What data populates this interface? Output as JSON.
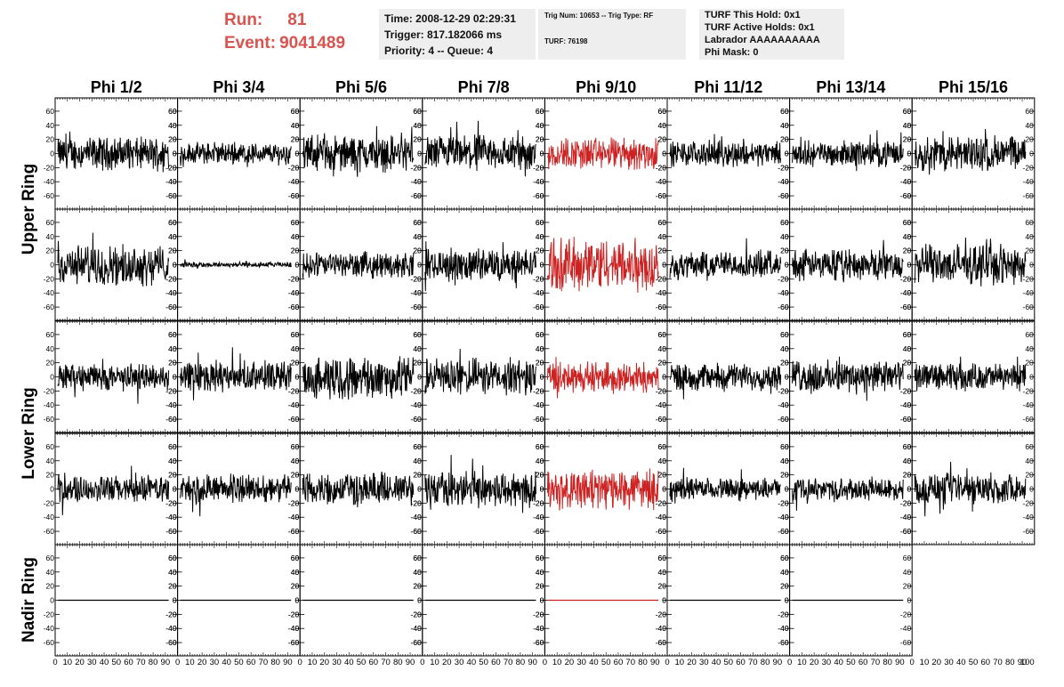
{
  "header": {
    "run_label": "Run:",
    "run_value": "81",
    "event_label": "Event:",
    "event_value": "9041489",
    "time": "Time: 2008-12-29 02:29:31",
    "trigger": "Trigger: 817.182066 ms",
    "priority": "Priority: 4 -- Queue: 4",
    "trig_num": "Trig Num: 10653 -- Trig Type: RF",
    "turf": "TURF: 76198",
    "turf_hold": "TURF This Hold: 0x1",
    "turf_active": "TURF Active Holds: 0x1",
    "labrador": "Labrador AAAAAAAAAA",
    "phi_mask": "Phi Mask: 0"
  },
  "colors": {
    "accent": "#d9534f",
    "trace": "#000000",
    "highlight": "#cc2222",
    "info_bg": "#eeeeee"
  },
  "chart_data": {
    "type": "line",
    "columns": [
      "Phi 1/2",
      "Phi 3/4",
      "Phi 5/6",
      "Phi 7/8",
      "Phi 9/10",
      "Phi 11/12",
      "Phi 13/14",
      "Phi 15/16"
    ],
    "row_labels": [
      "Upper Ring",
      "Lower Ring",
      "Nadir Ring"
    ],
    "ylim": [
      -70,
      70
    ],
    "yticks": [
      -60,
      -40,
      -20,
      0,
      20,
      40,
      60
    ],
    "xlim": [
      0,
      100
    ],
    "xtick_labels": [
      "0",
      "10",
      "20",
      "30",
      "40",
      "50",
      "60",
      "70",
      "80",
      "90",
      "100"
    ],
    "highlight_column": 4,
    "waveform_amplitude": [
      [
        18,
        12,
        20,
        20,
        18,
        14,
        14,
        20
      ],
      [
        22,
        3,
        14,
        18,
        30,
        15,
        17,
        22
      ],
      [
        15,
        17,
        24,
        20,
        17,
        15,
        18,
        15
      ],
      [
        15,
        16,
        18,
        20,
        22,
        12,
        12,
        17
      ],
      [
        0,
        0,
        0,
        0,
        0,
        0,
        0,
        null
      ]
    ]
  }
}
